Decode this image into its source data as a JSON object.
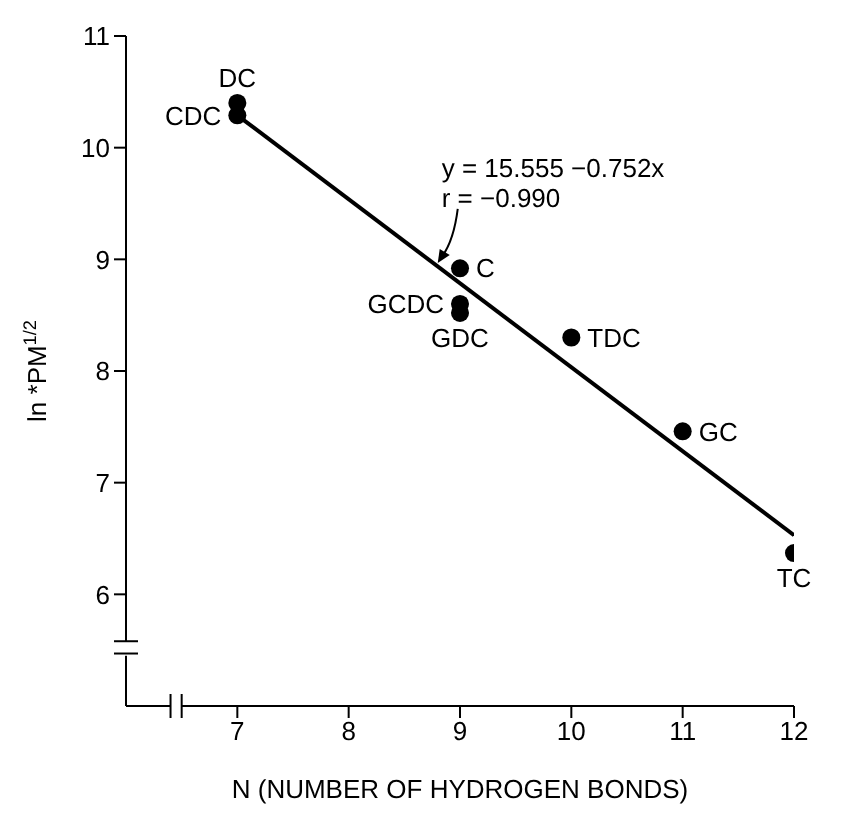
{
  "chart_data": {
    "type": "scatter",
    "xlabel": "N (NUMBER OF HYDROGEN BONDS)",
    "ylabel": "ln *PM$^{1/2}$",
    "xlim": [
      6,
      12
    ],
    "xticks": [
      7,
      8,
      9,
      10,
      11,
      12
    ],
    "ylim": [
      5,
      11
    ],
    "yticks": [
      6,
      7,
      8,
      9,
      10,
      11
    ],
    "grid": false,
    "legend": false,
    "series": [
      {
        "marker": "circle",
        "color": "#000000",
        "x": [
          7,
          7,
          9,
          9,
          9,
          10,
          11,
          12
        ],
        "values": [
          10.4,
          10.29,
          8.92,
          8.6,
          8.52,
          8.3,
          7.46,
          6.37
        ]
      },
      {
        "type": "line",
        "color": "#000000",
        "x": [
          7,
          12
        ],
        "values": [
          10.29,
          6.53
        ],
        "line_style": "solid",
        "marker": "none"
      }
    ],
    "annotations": [
      {
        "text": "DC",
        "x": 7,
        "y": 10.4
      },
      {
        "text": "CDC",
        "x": 7,
        "y": 10.29
      },
      {
        "text": "C",
        "x": 9,
        "y": 8.92
      },
      {
        "text": "GCDC",
        "x": 9,
        "y": 8.6
      },
      {
        "text": "GDC",
        "x": 9,
        "y": 8.52
      },
      {
        "text": "TDC",
        "x": 10,
        "y": 8.3
      },
      {
        "text": "GC",
        "x": 11,
        "y": 7.46
      },
      {
        "text": "TC",
        "x": 12,
        "y": 6.37
      },
      {
        "text": "y = 15.555 −0.752x",
        "x": 8.8,
        "y": 8.95
      },
      "r = −0.990"
    ]
  }
}
